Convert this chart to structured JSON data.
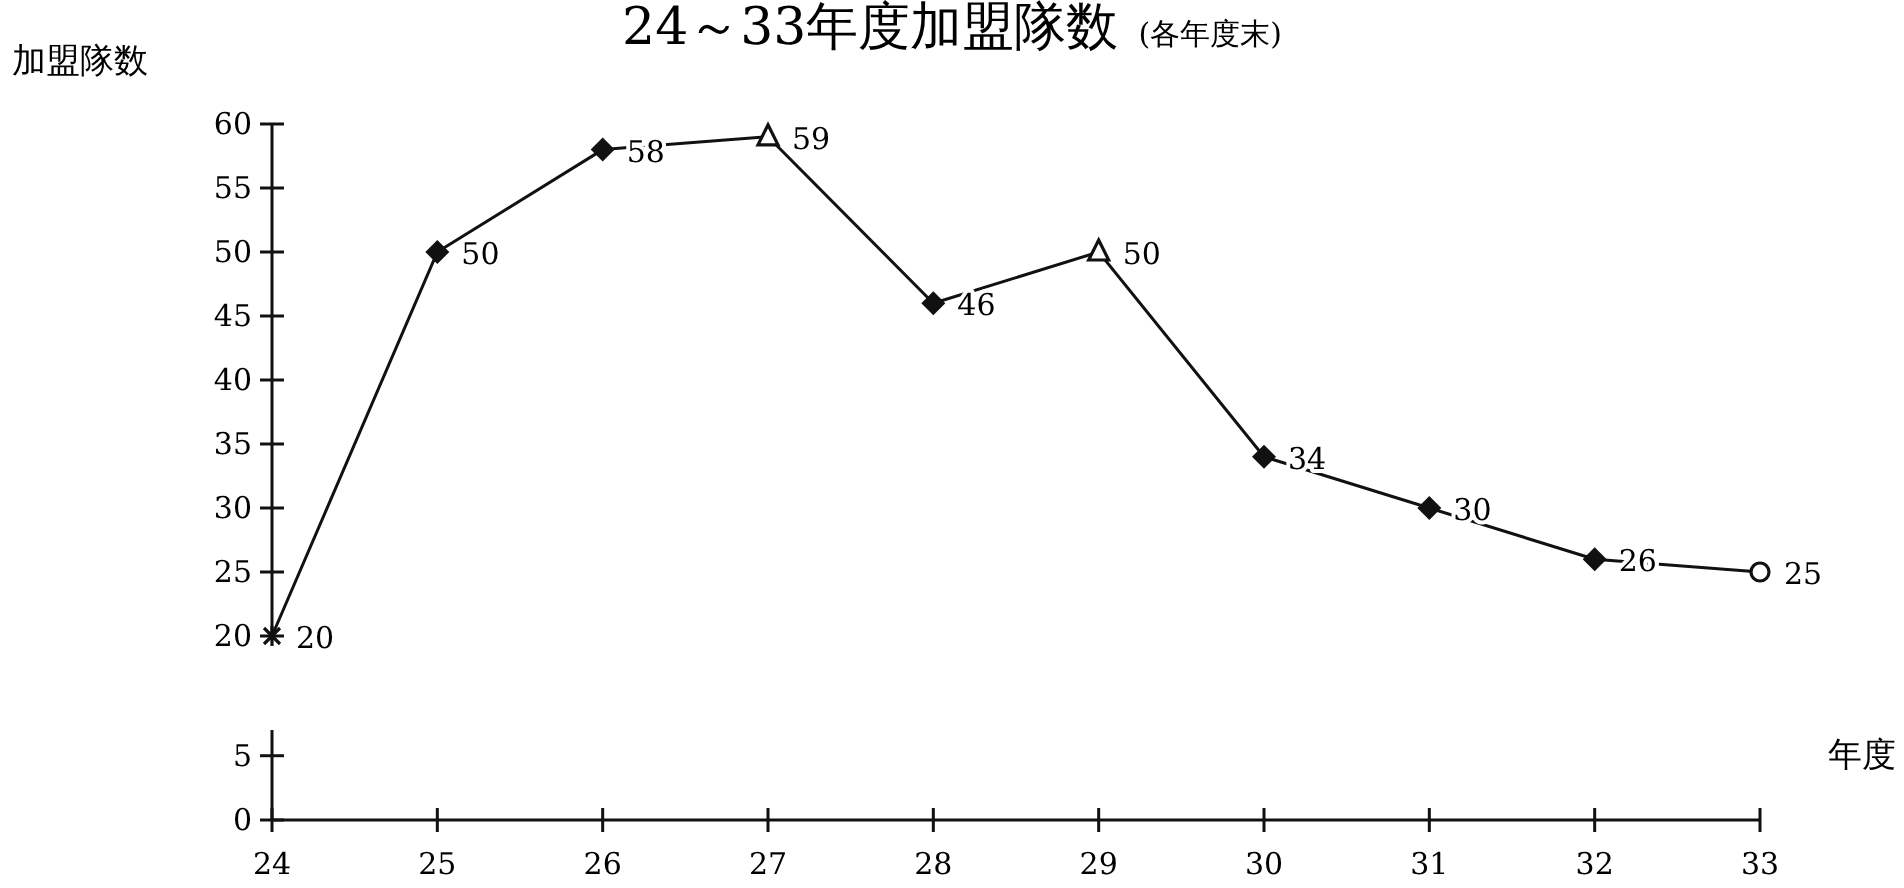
{
  "chart_data": [
    {
      "type": "line",
      "title": "24～33年度加盟隊数",
      "subtitle": "(各年度末)",
      "ylabel": "加盟隊数",
      "x": [
        24,
        25,
        26,
        27,
        28,
        29,
        30,
        31,
        32,
        33
      ],
      "xlim": [
        24,
        33
      ],
      "ylim": [
        20,
        60
      ],
      "yticks": [
        20,
        25,
        30,
        35,
        40,
        45,
        50,
        55,
        60
      ],
      "tick_labels": "y",
      "grid": false,
      "series": [
        {
          "type": "line",
          "color": "#111111",
          "marker": "none",
          "line_style": "solid",
          "values": [
            20,
            50,
            58,
            59,
            46,
            50,
            34,
            30,
            26,
            25
          ],
          "value_labels": [
            "20",
            "50",
            "58",
            "59",
            "46",
            "50",
            "34",
            "30",
            "26",
            "25"
          ]
        },
        {
          "type": "scatter",
          "color": "#111111",
          "marker": "cross",
          "values": [
            20,
            null,
            null,
            null,
            null,
            null,
            null,
            null,
            null,
            null
          ]
        },
        {
          "type": "scatter",
          "color": "#111111",
          "marker": "diamond",
          "values": [
            null,
            50,
            58,
            null,
            46,
            null,
            34,
            30,
            26,
            null
          ]
        },
        {
          "type": "scatter",
          "color": "#111111",
          "marker": "triangle",
          "values": [
            null,
            null,
            null,
            59,
            null,
            50,
            null,
            null,
            null,
            null
          ]
        },
        {
          "type": "scatter",
          "color": "#111111",
          "marker": "circle",
          "values": [
            null,
            null,
            null,
            null,
            null,
            null,
            null,
            null,
            null,
            25
          ]
        }
      ]
    },
    {
      "type": "line",
      "xlabel": "年度",
      "xlim": [
        24,
        33
      ],
      "xticks": [
        24,
        25,
        26,
        27,
        28,
        29,
        30,
        31,
        32,
        33
      ],
      "ylim": [
        0,
        7
      ],
      "yticks": [
        0,
        5
      ],
      "grid": false
    }
  ]
}
